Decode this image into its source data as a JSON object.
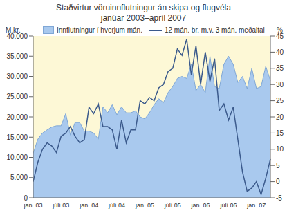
{
  "chart_data": {
    "type": "area_line",
    "title": "Staðvirtur vöruinnflutningur án skipa og flugvéla",
    "subtitle": "janúar 2003–apríl 2007",
    "y_label": "M.kr.",
    "y2_label": "%",
    "categories": [
      "jan. 03",
      null,
      null,
      null,
      null,
      null,
      "júlí 03",
      null,
      null,
      null,
      null,
      null,
      "jan. 04",
      null,
      null,
      null,
      null,
      null,
      "júlí 04",
      null,
      null,
      null,
      null,
      null,
      "jan. 05",
      null,
      null,
      null,
      null,
      null,
      "júlí 05",
      null,
      null,
      null,
      null,
      null,
      "jan. 06",
      null,
      null,
      null,
      null,
      null,
      "júlí 06",
      null,
      null,
      null,
      null,
      null,
      "jan. 07",
      null,
      null,
      null
    ],
    "series": [
      {
        "name": "Innflutningur í hverjum mán.",
        "type": "area",
        "color": "#a9c9ee",
        "values": [
          11000,
          14500,
          16000,
          16800,
          17500,
          17800,
          17800,
          20800,
          15500,
          18600,
          18600,
          16500,
          16500,
          16000,
          14500,
          22500,
          21000,
          23000,
          20500,
          22500,
          21000,
          21000,
          21500,
          20000,
          19500,
          21000,
          23000,
          24500,
          23500,
          26000,
          27500,
          29500,
          30000,
          29500,
          33000,
          26500,
          28000,
          26000,
          35000,
          27500,
          27000,
          33000,
          35000,
          33000,
          28500,
          30000,
          27000,
          32000,
          27000,
          27500,
          32500,
          29000
        ]
      },
      {
        "name": "12 mán. br. m.v. 3 mán. meðaltal",
        "type": "line",
        "axis": "y2",
        "color": "#3b5a8c",
        "values": [
          0,
          6,
          10,
          12,
          11,
          9,
          14,
          15,
          17,
          14,
          12,
          13,
          23,
          21,
          24,
          17,
          17,
          16,
          10,
          19,
          12,
          16,
          16,
          25,
          24,
          26,
          25,
          29,
          30,
          34,
          35,
          41,
          39,
          44,
          33,
          42,
          30,
          40,
          31,
          38,
          22,
          24,
          19,
          23,
          13,
          3,
          -3,
          -2,
          0,
          -4,
          1,
          7
        ]
      }
    ],
    "ylim": [
      0,
      40000
    ],
    "yticks": [
      0,
      {
        "value": 5000,
        "label": "5.000"
      },
      {
        "value": 10000,
        "label": "10.000"
      },
      {
        "value": 15000,
        "label": "15.000"
      },
      {
        "value": 20000,
        "label": "20.000"
      },
      {
        "value": 25000,
        "label": "25.000"
      },
      {
        "value": 30000,
        "label": "30.000"
      },
      {
        "value": 35000,
        "label": "35.000"
      },
      {
        "value": 40000,
        "label": "40.000"
      }
    ],
    "y2lim": [
      -5,
      45
    ],
    "y2ticks": [
      -5,
      0,
      5,
      10,
      15,
      20,
      25,
      30,
      35,
      40,
      45
    ],
    "grid": false,
    "legend": "top"
  }
}
